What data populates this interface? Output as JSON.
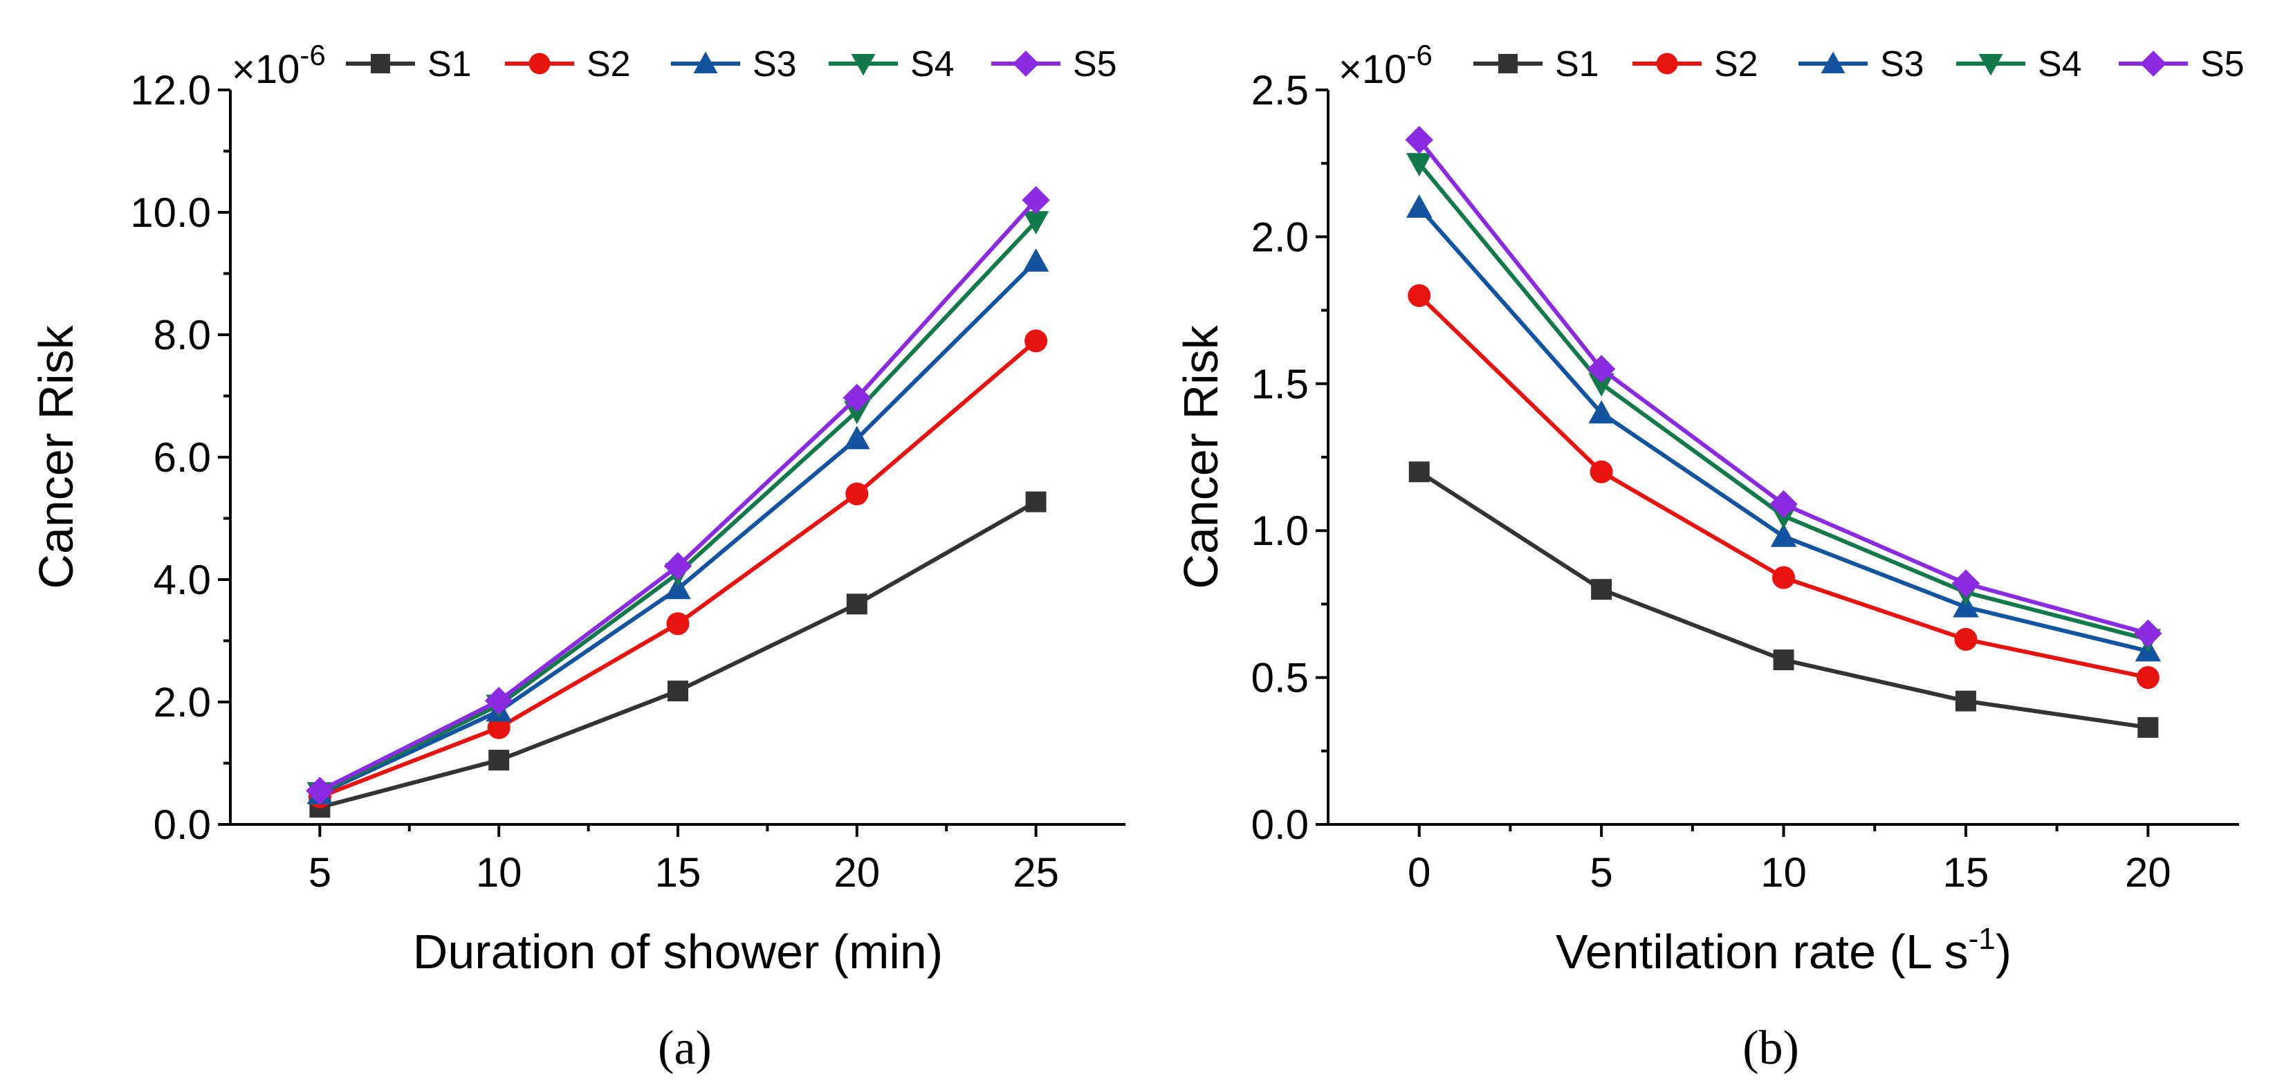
{
  "chart_data": [
    {
      "id": "a",
      "type": "line",
      "panel_label": "(a)",
      "multiplier": "×10",
      "multiplier_exp": "-6",
      "xlabel": "Duration of shower (min)",
      "ylabel": "Cancer Risk",
      "xlim": [
        2.5,
        27.5
      ],
      "ylim": [
        0,
        12
      ],
      "x_ticks": [
        5,
        10,
        15,
        20,
        25
      ],
      "x_tick_labels": [
        "5",
        "10",
        "15",
        "20",
        "25"
      ],
      "y_ticks": [
        0,
        2,
        4,
        6,
        8,
        10,
        12
      ],
      "y_tick_labels": [
        "0.0",
        "2.0",
        "4.0",
        "6.0",
        "8.0",
        "10.0",
        "12.0"
      ],
      "x": [
        5,
        10,
        15,
        20,
        25
      ],
      "series": [
        {
          "name": "S1",
          "values": [
            0.28,
            1.05,
            2.18,
            3.6,
            5.27
          ]
        },
        {
          "name": "S2",
          "values": [
            0.45,
            1.58,
            3.28,
            5.4,
            7.9
          ]
        },
        {
          "name": "S3",
          "values": [
            0.5,
            1.85,
            3.85,
            6.3,
            9.2
          ]
        },
        {
          "name": "S4",
          "values": [
            0.52,
            1.95,
            4.1,
            6.75,
            9.85
          ]
        },
        {
          "name": "S5",
          "values": [
            0.55,
            2.02,
            4.22,
            6.97,
            10.2
          ]
        }
      ]
    },
    {
      "id": "b",
      "type": "line",
      "panel_label": "(b)",
      "multiplier": "×10",
      "multiplier_exp": "-6",
      "xlabel": "Ventilation rate (L s",
      "xlabel_exp": "-1",
      "xlabel_suffix": ")",
      "ylabel": "Cancer Risk",
      "xlim": [
        -2.5,
        22.5
      ],
      "ylim": [
        0,
        2.5
      ],
      "x_ticks": [
        0,
        5,
        10,
        15,
        20
      ],
      "x_tick_labels": [
        "0",
        "5",
        "10",
        "15",
        "20"
      ],
      "y_ticks": [
        0,
        0.5,
        1.0,
        1.5,
        2.0,
        2.5
      ],
      "y_tick_labels": [
        "0.0",
        "0.5",
        "1.0",
        "1.5",
        "2.0",
        "2.5"
      ],
      "x": [
        0,
        5,
        10,
        15,
        20
      ],
      "series": [
        {
          "name": "S1",
          "values": [
            1.2,
            0.8,
            0.56,
            0.42,
            0.33
          ]
        },
        {
          "name": "S2",
          "values": [
            1.8,
            1.2,
            0.84,
            0.63,
            0.5
          ]
        },
        {
          "name": "S3",
          "values": [
            2.1,
            1.4,
            0.98,
            0.74,
            0.59
          ]
        },
        {
          "name": "S4",
          "values": [
            2.25,
            1.5,
            1.05,
            0.79,
            0.63
          ]
        },
        {
          "name": "S5",
          "values": [
            2.33,
            1.55,
            1.09,
            0.82,
            0.65
          ]
        }
      ]
    }
  ],
  "series_style": [
    {
      "name": "S1",
      "color": "#333333",
      "marker": "square"
    },
    {
      "name": "S2",
      "color": "#e8120f",
      "marker": "circle"
    },
    {
      "name": "S3",
      "color": "#1254a0",
      "marker": "triangle-up"
    },
    {
      "name": "S4",
      "color": "#127a4a",
      "marker": "triangle-down"
    },
    {
      "name": "S5",
      "color": "#8a2be2",
      "marker": "diamond"
    }
  ]
}
